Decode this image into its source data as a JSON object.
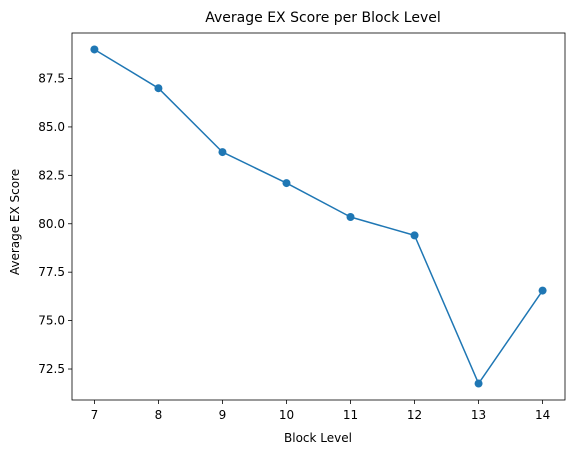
{
  "chart_data": {
    "type": "line",
    "title": "Average EX Score per Block Level",
    "xlabel": "Block Level",
    "ylabel": "Average EX Score",
    "x": [
      7,
      8,
      9,
      10,
      11,
      12,
      13,
      14
    ],
    "series": [
      {
        "values": [
          89.0,
          87.0,
          83.7,
          82.1,
          80.35,
          79.4,
          71.75,
          76.55
        ],
        "color": "#1f77b4",
        "marker": "circle"
      }
    ],
    "xlim": [
      6.65,
      14.35
    ],
    "ylim": [
      70.9,
      89.85
    ],
    "xticks": [
      7,
      8,
      9,
      10,
      11,
      12,
      13,
      14
    ],
    "xtick_labels": [
      "7",
      "8",
      "9",
      "10",
      "11",
      "12",
      "13",
      "14"
    ],
    "yticks": [
      72.5,
      75.0,
      77.5,
      80.0,
      82.5,
      85.0,
      87.5
    ],
    "ytick_labels": [
      "72.5",
      "75.0",
      "77.5",
      "80.0",
      "82.5",
      "85.0",
      "87.5"
    ],
    "grid": false,
    "legend": "none"
  }
}
